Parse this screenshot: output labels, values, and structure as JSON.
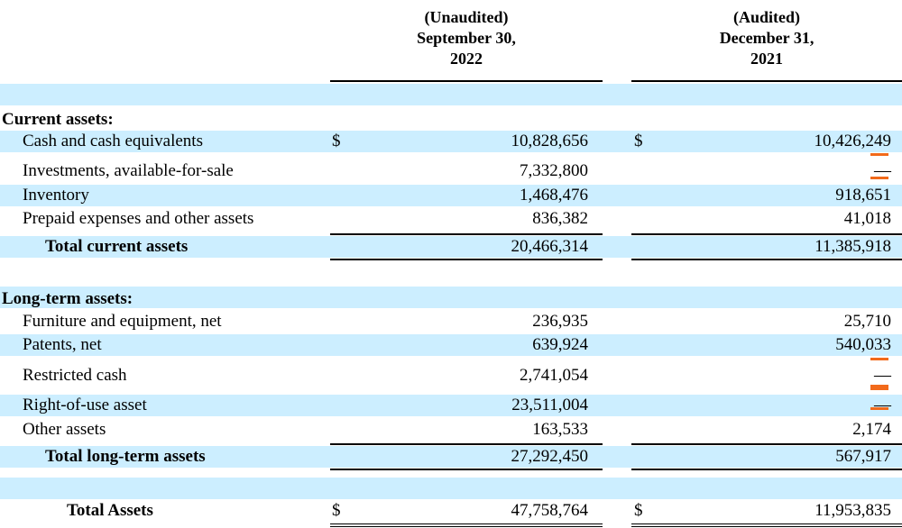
{
  "headers": {
    "col1": [
      "(Unaudited)",
      "September 30,",
      "2022"
    ],
    "col2": [
      "(Audited)",
      "December 31,",
      "2021"
    ]
  },
  "current_assets": {
    "heading": "Current assets:",
    "cash": {
      "label": "Cash and cash equivalents",
      "currency": "$",
      "v2022": "10,828,656",
      "v2021": "10,426,249"
    },
    "investments": {
      "label": "Investments, available-for-sale",
      "v2022": "7,332,800",
      "v2021": "—"
    },
    "inventory": {
      "label": "Inventory",
      "v2022": "1,468,476",
      "v2021": "918,651"
    },
    "prepaid": {
      "label": "Prepaid expenses and other assets",
      "v2022": "836,382",
      "v2021": "41,018"
    },
    "total": {
      "label": "Total current assets",
      "v2022": "20,466,314",
      "v2021": "11,385,918"
    }
  },
  "long_term_assets": {
    "heading": "Long-term assets:",
    "furniture": {
      "label": "Furniture and equipment, net",
      "v2022": "236,935",
      "v2021": "25,710"
    },
    "patents": {
      "label": "Patents, net",
      "v2022": "639,924",
      "v2021": "540,033"
    },
    "restricted": {
      "label": "Restricted cash",
      "v2022": "2,741,054",
      "v2021": "—"
    },
    "rou": {
      "label": "Right-of-use asset",
      "v2022": "23,511,004",
      "v2021": "—"
    },
    "other": {
      "label": "Other assets",
      "v2022": "163,533",
      "v2021": "2,174"
    },
    "total": {
      "label": "Total long-term assets",
      "v2022": "27,292,450",
      "v2021": "567,917"
    }
  },
  "total_assets": {
    "label": "Total Assets",
    "currency": "$",
    "v2022": "47,758,764",
    "v2021": "11,953,835"
  },
  "colors": {
    "row_shade": "#cceeff",
    "highlight_mark": "#f26a1b"
  }
}
